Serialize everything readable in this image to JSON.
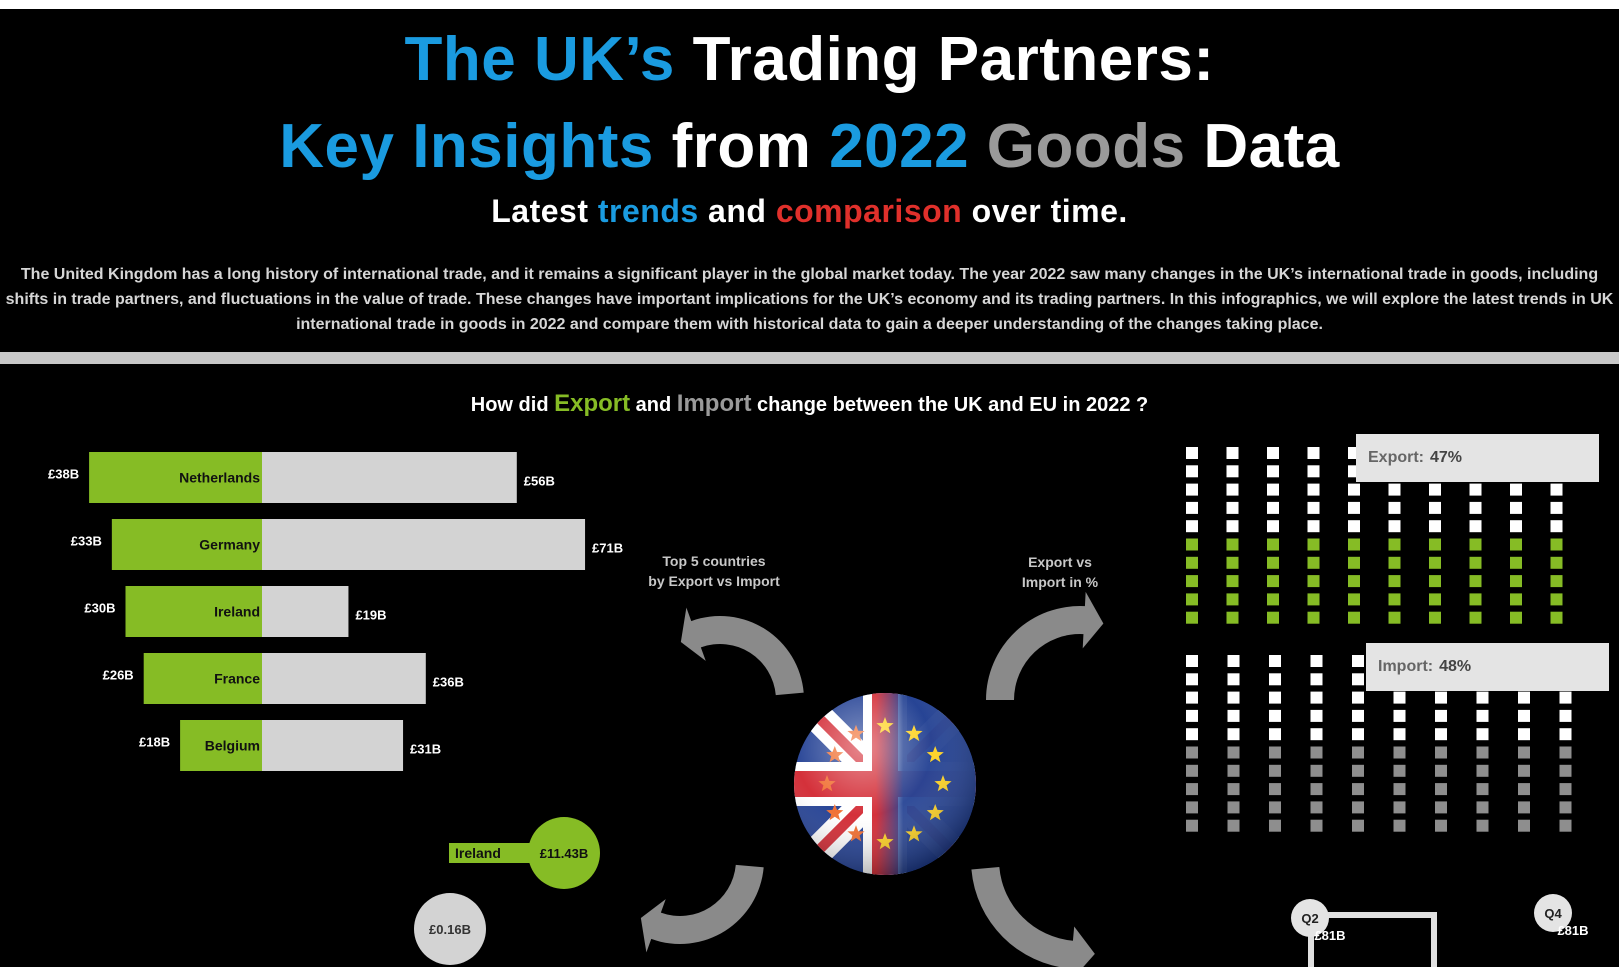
{
  "title": {
    "line1": {
      "blue": "The UK’s",
      "white": "Trading Partners:"
    },
    "line2": {
      "blue1": "Key Insights",
      "white1": "from",
      "blue2": "2022",
      "grey": "Goods",
      "white2": "Data"
    },
    "line3": {
      "w1": "Latest",
      "blue": "trends",
      "w2": "and",
      "red": "comparison",
      "w3": "over time."
    }
  },
  "intro": "The United Kingdom has a long history of international trade, and it remains a significant player in the global market today. The year 2022 saw many changes in the UK’s international trade in goods, including shifts in trade partners, and fluctuations in the value of trade. These changes have important implications for the UK’s economy and its trading partners. In this infographics, we will explore the latest trends in UK international trade in goods in 2022 and compare them with historical data to gain a deeper understanding of the changes taking place.",
  "question": {
    "pre": "How did",
    "export": "Export",
    "mid": "and",
    "import": "Import",
    "post": "change between the UK and EU in 2022 ?"
  },
  "arrow_labels": {
    "top5": [
      "Top 5 countries",
      "by Export vs Import"
    ],
    "pct": [
      "Export vs",
      "Import in %"
    ]
  },
  "percent_labels": {
    "export": {
      "label": "Export:",
      "value": "47%"
    },
    "import": {
      "label": "Import:",
      "value": "48%"
    }
  },
  "colors": {
    "export": "#86bc25",
    "import": "#d3d3d3",
    "blue": "#1a9be0",
    "red": "#e0302b",
    "arrow": "#8a8a8a"
  },
  "chart_data": [
    {
      "type": "bar",
      "categories": [
        "Netherlands",
        "Germany",
        "Ireland",
        "France",
        "Belgium"
      ],
      "series": [
        {
          "name": "Export",
          "values": [
            38,
            33,
            30,
            26,
            18
          ],
          "labels": [
            "£38B",
            "£33B",
            "£30B",
            "£26B",
            "£18B"
          ]
        },
        {
          "name": "Import",
          "values": [
            56,
            71,
            19,
            36,
            31
          ],
          "labels": [
            "£56B",
            "£71B",
            "£19B",
            "£36B",
            "£31B"
          ]
        }
      ]
    },
    {
      "type": "waffle",
      "series": [
        {
          "name": "Export",
          "value": 47,
          "label": "Export: 47%"
        },
        {
          "name": "Import",
          "value": 48,
          "label": "Import: 48%"
        }
      ]
    },
    {
      "type": "bubble",
      "points": [
        {
          "label": "Ireland",
          "value": 11.43,
          "text": "£11.43B"
        },
        {
          "label": "",
          "value": 0.16,
          "text": "£0.16B"
        }
      ]
    },
    {
      "type": "quarters",
      "points": [
        {
          "quarter": "Q2",
          "text": "£81B"
        },
        {
          "quarter": "Q4",
          "text": "£81B"
        }
      ]
    }
  ]
}
